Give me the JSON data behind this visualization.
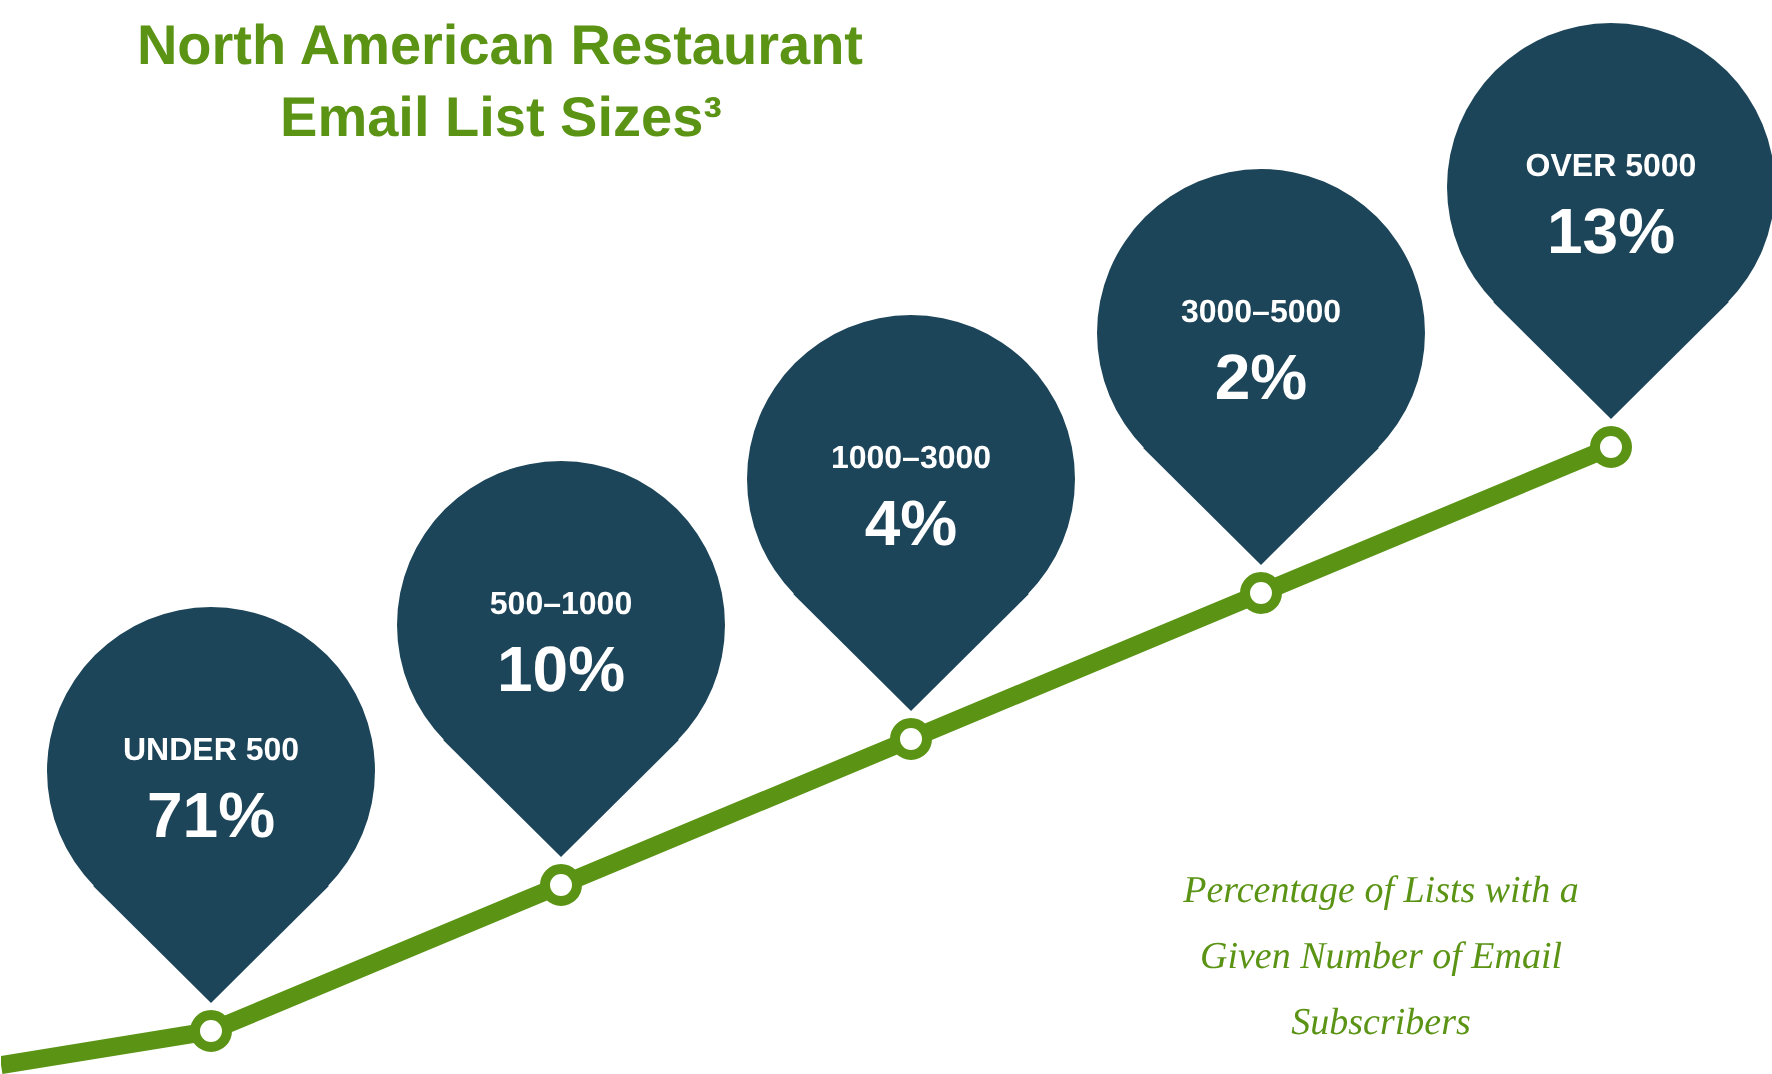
{
  "chart_data": {
    "type": "other",
    "title": "North American Restaurant Email List Sizes³",
    "categories": [
      "UNDER 500",
      "500–1000",
      "1000–3000",
      "3000–5000",
      "OVER 5000"
    ],
    "values": [
      71,
      10,
      4,
      2,
      13
    ],
    "value_labels": [
      "71%",
      "10%",
      "4%",
      "2%",
      "13%"
    ],
    "color": "#1d4559",
    "annotations": [
      "Percentage of Lists with a Given Number of Email Subscribers"
    ]
  }
}
